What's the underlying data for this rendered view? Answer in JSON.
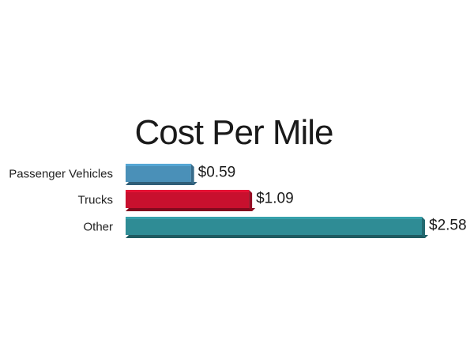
{
  "chart_data": {
    "type": "bar",
    "orientation": "horizontal",
    "title": "Cost Per Mile",
    "categories": [
      "Passenger Vehicles",
      "Trucks",
      "Other"
    ],
    "values": [
      0.59,
      1.09,
      2.58
    ],
    "value_labels": [
      "$0.59",
      "$1.09",
      "$2.58"
    ],
    "colors": [
      "#4a90b8",
      "#c8102e",
      "#2f8c95"
    ],
    "xlim": [
      0,
      2.58
    ],
    "grid": false,
    "legend": "none"
  }
}
